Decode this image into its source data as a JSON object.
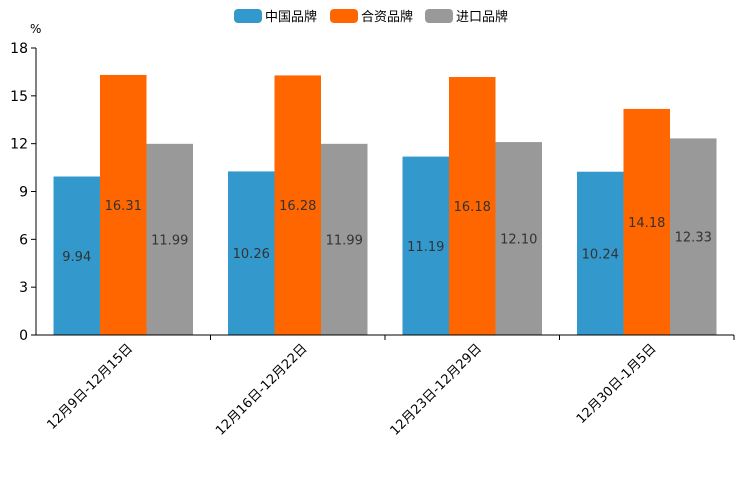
{
  "chart_data": {
    "type": "bar",
    "unit": "%",
    "categories": [
      "12月9日-12月15日",
      "12月16日-12月22日",
      "12月23日-12月29日",
      "12月30日-1月5日"
    ],
    "series": [
      {
        "name": "中国品牌",
        "color": "#3399cc",
        "values": [
          9.94,
          10.26,
          11.19,
          10.24
        ],
        "labels": [
          "9.94",
          "10.26",
          "11.19",
          "10.24"
        ]
      },
      {
        "name": "合资品牌",
        "color": "#ff6600",
        "values": [
          16.31,
          16.28,
          16.18,
          14.18
        ],
        "labels": [
          "16.31",
          "16.28",
          "16.18",
          "14.18"
        ]
      },
      {
        "name": "进口品牌",
        "color": "#999999",
        "values": [
          11.99,
          11.99,
          12.1,
          12.33
        ],
        "labels": [
          "11.99",
          "11.99",
          "12.10",
          "12.33"
        ]
      }
    ],
    "ylim": [
      0,
      18
    ],
    "yticks": [
      "0",
      "3",
      "6",
      "9",
      "12",
      "15",
      "18"
    ],
    "legend_position": "top-center",
    "grid": false
  }
}
